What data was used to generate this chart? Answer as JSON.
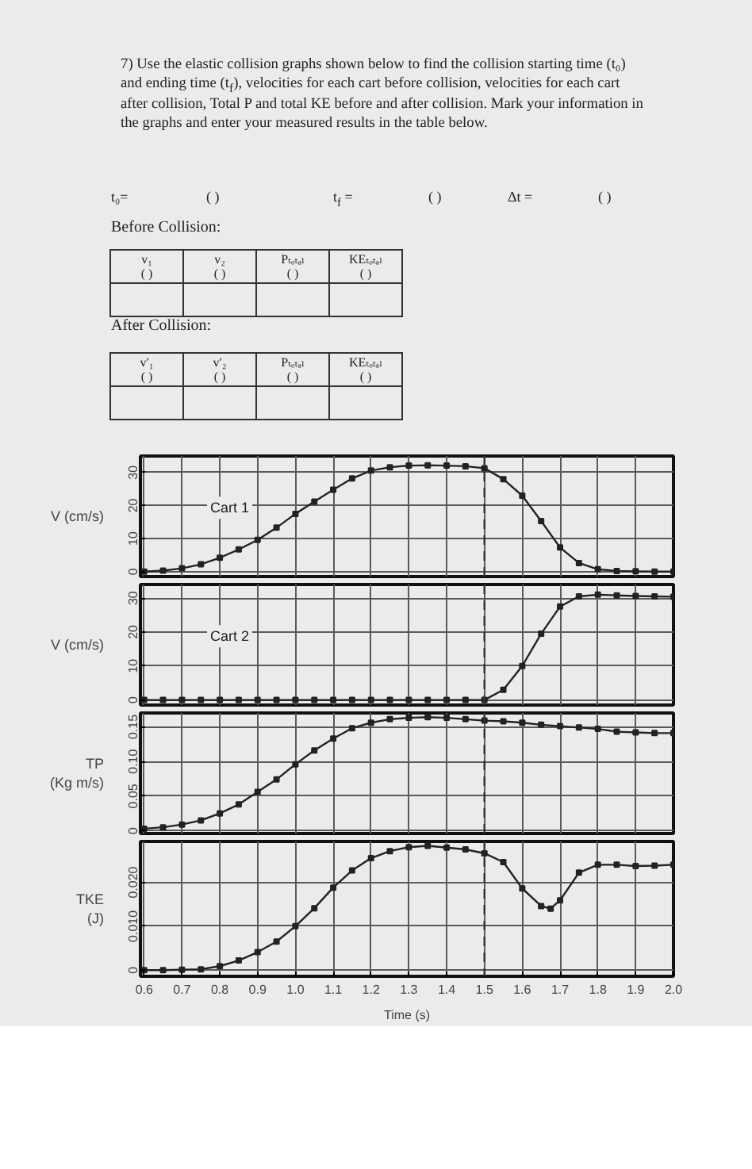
{
  "chart_data": [
    {
      "type": "other",
      "title": "7) Use the elastic collision graphs shown below to find the collision starting time (t₀) and ending time (t$_{f}$), velocities for each cart before collision, velocities for each cart after collision, Total P and total KE before and after collision. Mark your information in the graphs and enter your measured results in the table below.",
      "annotations": [
        "t₀=",
        "( )",
        "t$_{f}$ =",
        "( )",
        "Δt =",
        "( )",
        "Before Collision:",
        "v₁",
        "( )",
        "v₂",
        "( )",
        "Pₜₒₜₐₗ",
        "( )",
        "KEₜₒₜₐₗ",
        "( )",
        "After Collision:",
        "v′₁",
        "( )",
        "v′₂",
        "( )",
        "Pₜₒₜₐₗ",
        "( )",
        "KEₜₒₜₐₗ",
        "( )"
      ]
    },
    {
      "type": "line",
      "x": [
        0.6,
        0.65,
        0.7,
        0.75,
        0.8,
        0.85,
        0.9,
        0.95,
        1.0,
        1.05,
        1.1,
        1.15,
        1.2,
        1.25,
        1.3,
        1.35,
        1.4,
        1.45,
        1.5,
        1.55,
        1.6,
        1.65,
        1.7,
        1.75,
        1.8,
        1.85,
        1.9,
        1.95,
        2.0
      ],
      "series": [
        {
          "name": "Cart 1",
          "color": "#222222",
          "values": [
            0,
            0.3,
            1.0,
            2.2,
            4.2,
            6.7,
            9.6,
            13.3,
            17.5,
            21.2,
            24.8,
            28.2,
            30.6,
            31.6,
            32.1,
            32.2,
            32.1,
            31.9,
            31.3,
            28.0,
            23.0,
            15.3,
            7.3,
            2.6,
            0.7,
            0.2,
            0.1,
            0,
            0
          ]
        }
      ],
      "ylabel": "V (cm/s)",
      "xlim": [
        0.59,
        2.0
      ],
      "xticks": [
        0.6,
        0.7,
        0.8,
        0.9,
        1,
        1.1,
        1.2,
        1.3,
        1.4,
        1.5,
        1.6,
        1.7,
        1.8,
        1.9,
        2
      ],
      "ylim": [
        -1.5,
        35
      ],
      "yticks": [
        0,
        10,
        20,
        30
      ],
      "grid": true,
      "tick_labels": "y",
      "marker": "square",
      "ref_lines": [
        {
          "axis": "x",
          "value": 1.5,
          "line_style": "dashed"
        }
      ]
    },
    {
      "type": "line",
      "x": [
        0.6,
        0.65,
        0.7,
        0.75,
        0.8,
        0.85,
        0.9,
        0.95,
        1.0,
        1.05,
        1.1,
        1.15,
        1.2,
        1.25,
        1.3,
        1.35,
        1.4,
        1.45,
        1.5,
        1.55,
        1.6,
        1.65,
        1.7,
        1.75,
        1.8,
        1.85,
        1.9,
        1.95,
        2.0
      ],
      "series": [
        {
          "name": "Cart 2",
          "color": "#222222",
          "values": [
            0,
            0,
            0,
            0,
            0,
            0,
            0,
            0,
            0,
            0,
            0,
            0,
            0,
            0,
            0,
            0,
            0,
            0,
            0,
            3.0,
            10.0,
            19.5,
            27.5,
            30.5,
            31.0,
            30.8,
            30.6,
            30.5,
            30.4
          ]
        }
      ],
      "ylabel": "V (cm/s)",
      "xlim": [
        0.59,
        2.0
      ],
      "xticks": [
        0.6,
        0.7,
        0.8,
        0.9,
        1,
        1.1,
        1.2,
        1.3,
        1.4,
        1.5,
        1.6,
        1.7,
        1.8,
        1.9,
        2
      ],
      "ylim": [
        -1.5,
        34
      ],
      "yticks": [
        0,
        10,
        20,
        30
      ],
      "grid": true,
      "tick_labels": "y",
      "marker": "square",
      "ref_lines": [
        {
          "axis": "x",
          "value": 1.5,
          "line_style": "dashed"
        }
      ]
    },
    {
      "type": "line",
      "x": [
        0.6,
        0.65,
        0.7,
        0.75,
        0.8,
        0.85,
        0.9,
        0.95,
        1.0,
        1.05,
        1.1,
        1.15,
        1.2,
        1.25,
        1.3,
        1.35,
        1.4,
        1.45,
        1.5,
        1.55,
        1.6,
        1.65,
        1.7,
        1.75,
        1.8,
        1.85,
        1.9,
        1.95,
        2.0
      ],
      "series": [
        {
          "color": "#222222",
          "values": [
            0.003,
            0.005,
            0.009,
            0.015,
            0.025,
            0.038,
            0.056,
            0.074,
            0.096,
            0.116,
            0.133,
            0.148,
            0.156,
            0.161,
            0.163,
            0.164,
            0.163,
            0.161,
            0.159,
            0.158,
            0.156,
            0.153,
            0.151,
            0.149,
            0.147,
            0.143,
            0.142,
            0.141,
            0.141
          ]
        }
      ],
      "ylabel": "TP\n(Kg m/s)",
      "xlim": [
        0.59,
        2.0
      ],
      "xticks": [
        0.6,
        0.7,
        0.8,
        0.9,
        1,
        1.1,
        1.2,
        1.3,
        1.4,
        1.5,
        1.6,
        1.7,
        1.8,
        1.9,
        2
      ],
      "ylim": [
        -0.004,
        0.17
      ],
      "yticks": [
        0,
        0.05,
        {
          "value": 0.1,
          "label": "0.10"
        },
        0.15
      ],
      "grid": true,
      "tick_labels": "y",
      "marker": "square",
      "ref_lines": [
        {
          "axis": "x",
          "value": 1.5,
          "line_style": "dashed"
        }
      ]
    },
    {
      "type": "line",
      "x": [
        0.6,
        0.65,
        0.7,
        0.75,
        0.8,
        0.85,
        0.9,
        0.95,
        1.0,
        1.05,
        1.1,
        1.15,
        1.2,
        1.25,
        1.3,
        1.35,
        1.4,
        1.45,
        1.5,
        1.55,
        1.6,
        1.65,
        1.675,
        1.7,
        1.75,
        1.8,
        1.85,
        1.9,
        1.95,
        2.0
      ],
      "series": [
        {
          "color": "#222222",
          "values": [
            0,
            0,
            0.0001,
            0.0002,
            0.0009,
            0.0022,
            0.0041,
            0.0065,
            0.01,
            0.0141,
            0.0188,
            0.0227,
            0.0255,
            0.0271,
            0.028,
            0.0283,
            0.0279,
            0.0275,
            0.0266,
            0.0246,
            0.0186,
            0.0146,
            0.014,
            0.0159,
            0.0222,
            0.024,
            0.024,
            0.0237,
            0.0238,
            0.024
          ]
        }
      ],
      "ylabel": "TKE\n(J)",
      "xlabel": "Time (s)",
      "xlim": [
        0.59,
        2.0
      ],
      "xticks": [
        0.6,
        0.7,
        0.8,
        0.9,
        {
          "value": 1,
          "label": "1.0"
        },
        1.1,
        1.2,
        1.3,
        1.4,
        1.5,
        1.6,
        1.7,
        1.8,
        1.9,
        {
          "value": 2,
          "label": "2.0"
        }
      ],
      "ylim": [
        -0.0014,
        0.0293
      ],
      "yticks": [
        0,
        {
          "value": 0.01,
          "label": "0.010"
        },
        {
          "value": 0.02,
          "label": "0.020"
        }
      ],
      "grid": true,
      "marker": "square",
      "ref_lines": [
        {
          "axis": "x",
          "value": 1.5,
          "line_style": "dashed"
        }
      ]
    }
  ]
}
